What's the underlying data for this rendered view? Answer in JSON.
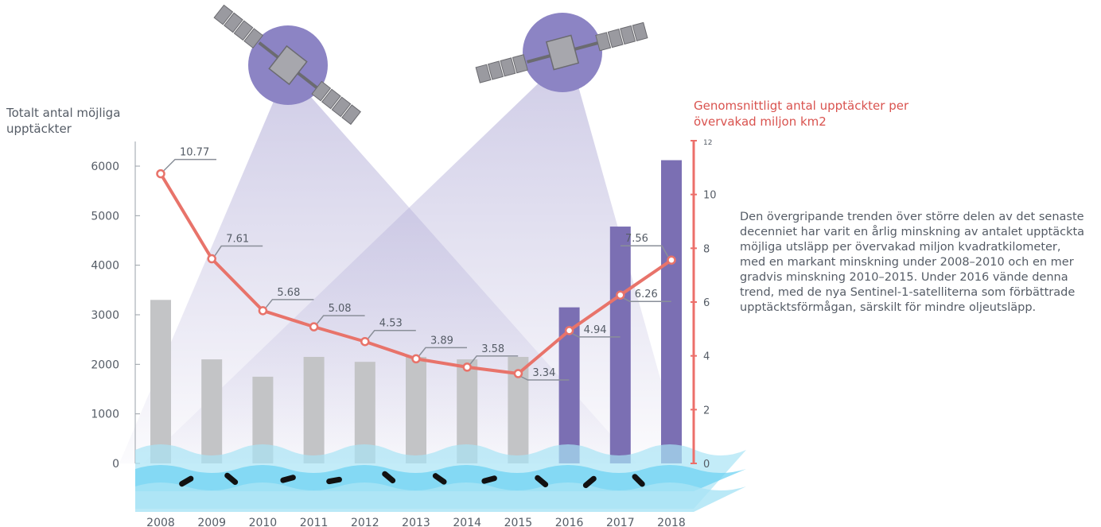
{
  "chart_data": {
    "type": "bar",
    "left_axis_label": "Totalt antal möjliga upptäckter",
    "right_axis_label": "Genomsnittligt antal upptäckter per övervakad miljon km2",
    "description": "Den övergripande trenden över större delen av det senaste decenniet har varit en årlig minskning av antalet upptäckta möjliga utsläpp per övervakad miljon kvadratkilometer, med en markant minskning under 2008–2010 och en mer gradvis minskning 2010–2015. Under 2016 vände denna trend, med de nya Sentinel-1-satelliterna som förbättrade upptäcktsförmågan, särskilt för mindre oljeutsläpp.",
    "categories": [
      "2008",
      "2009",
      "2010",
      "2011",
      "2012",
      "2013",
      "2014",
      "2015",
      "2016",
      "2017",
      "2018"
    ],
    "series": [
      {
        "axis": "left",
        "values": [
          3300,
          2100,
          1750,
          2150,
          2050,
          2150,
          2100,
          2150,
          3150,
          4780,
          6120
        ]
      },
      {
        "axis": "right",
        "values": [
          10.77,
          7.61,
          5.68,
          5.08,
          4.53,
          3.89,
          3.58,
          3.34,
          4.94,
          6.26,
          7.56
        ]
      }
    ],
    "value_labels": [
      "10.77",
      "7.61",
      "5.68",
      "5.08",
      "4.53",
      "3.89",
      "3.58",
      "3.34",
      "4.94",
      "6.26",
      "7.56"
    ],
    "left_ticks": [
      "0",
      "1000",
      "2000",
      "3000",
      "4000",
      "5000",
      "6000"
    ],
    "right_ticks": [
      "0",
      "2",
      "4",
      "6",
      "8",
      "10",
      "12"
    ],
    "ylim_left": [
      0,
      6000
    ],
    "ylim_right": [
      0,
      12
    ],
    "colors": {
      "bar_gray": "#c3c4c6",
      "bar_purple": "#7b6fb3",
      "line": "#e8736a",
      "right_axis": "#ec6f6a",
      "label_connector": "#8a8f99",
      "water_light": "#a9e4f5",
      "water_mid": "#6fd3f3",
      "beam": "#b3aed8",
      "satellite_body": "#8f8f95",
      "satellite_disc": "#8c84c4",
      "slick": "#111111"
    },
    "icons": [
      "satellite-left-icon",
      "satellite-right-icon",
      "oil-slick-icon"
    ]
  }
}
